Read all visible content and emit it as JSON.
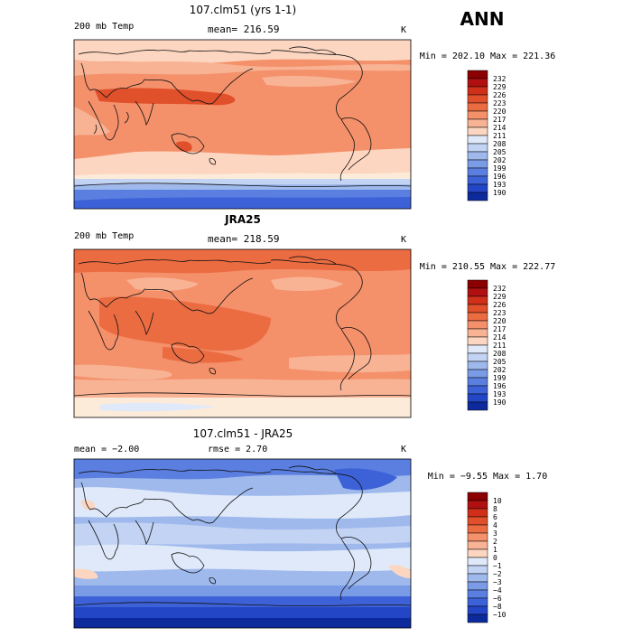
{
  "season_label": "ANN",
  "panels": [
    {
      "title": "107.clm51 (yrs 1-1)",
      "left_label": "200 mb Temp",
      "center_label": "mean= 216.59",
      "units": "K",
      "min_max": "Min = 202.10 Max = 221.36",
      "colorbar": {
        "labels": [
          "232",
          "229",
          "226",
          "223",
          "220",
          "217",
          "214",
          "211",
          "208",
          "205",
          "202",
          "199",
          "196",
          "193",
          "190"
        ]
      }
    },
    {
      "title": "JRA25",
      "left_label": "200 mb Temp",
      "center_label": "mean= 218.59",
      "units": "K",
      "min_max": "Min = 210.55 Max = 222.77",
      "colorbar": {
        "labels": [
          "232",
          "229",
          "226",
          "223",
          "220",
          "217",
          "214",
          "211",
          "208",
          "205",
          "202",
          "199",
          "196",
          "193",
          "190"
        ]
      }
    },
    {
      "title": "107.clm51 - JRA25",
      "left_label": "mean =  −2.00",
      "center_label": "rmse =   2.70",
      "units": "K",
      "min_max": "Min =  −9.55 Max =   1.70",
      "colorbar": {
        "labels": [
          "10",
          "8",
          "6",
          "4",
          "3",
          "2",
          "1",
          "0",
          "−1",
          "−2",
          "−3",
          "−4",
          "−6",
          "−8",
          "−10"
        ]
      }
    }
  ],
  "colors": {
    "warm_scale": [
      "#8b0000",
      "#b01010",
      "#d0301a",
      "#e0502a",
      "#ec6c42",
      "#f4906a",
      "#f8b294",
      "#fcd6c0",
      "#fdebd9"
    ],
    "cool_scale": [
      "#dfe9f9",
      "#c2d3f3",
      "#9fb9ed",
      "#7a9be6",
      "#5a7fe0",
      "#3d62d8",
      "#2346c7",
      "#0d2a9c",
      "#001680"
    ]
  }
}
